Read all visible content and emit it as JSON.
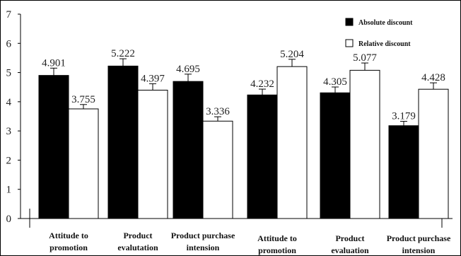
{
  "chart_data": {
    "type": "bar",
    "categories": [
      [
        "Attitude to",
        "promotion"
      ],
      [
        "Product",
        "evalutation"
      ],
      [
        "Product purchase",
        "intension"
      ],
      [
        "Attitude to",
        "promotion"
      ],
      [
        "Product",
        "evaluation"
      ],
      [
        "Product purchase",
        "intension"
      ]
    ],
    "series": [
      {
        "name": "Absolute discount",
        "color": "#000000",
        "values": [
          4.901,
          5.222,
          4.695,
          4.232,
          4.305,
          3.179
        ],
        "labels": [
          "4.901",
          "5.222",
          "4.695",
          "4.232",
          "4.305",
          "3.179"
        ],
        "errors": [
          0.25,
          0.25,
          0.25,
          0.2,
          0.2,
          0.15
        ]
      },
      {
        "name": "Relative discount",
        "color": "#ffffff",
        "values": [
          3.755,
          4.397,
          3.336,
          5.204,
          5.077,
          4.428
        ],
        "labels": [
          "3.755",
          "4.397",
          "3.336",
          "5.204",
          "5.077",
          "4.428"
        ],
        "errors": [
          0.15,
          0.22,
          0.15,
          0.25,
          0.25,
          0.22
        ]
      }
    ],
    "yticks": [
      "0",
      "1",
      "2",
      "3",
      "4",
      "5",
      "6",
      "7"
    ],
    "ylim": [
      0,
      7
    ],
    "legend_position": "top-right",
    "grid": false
  }
}
